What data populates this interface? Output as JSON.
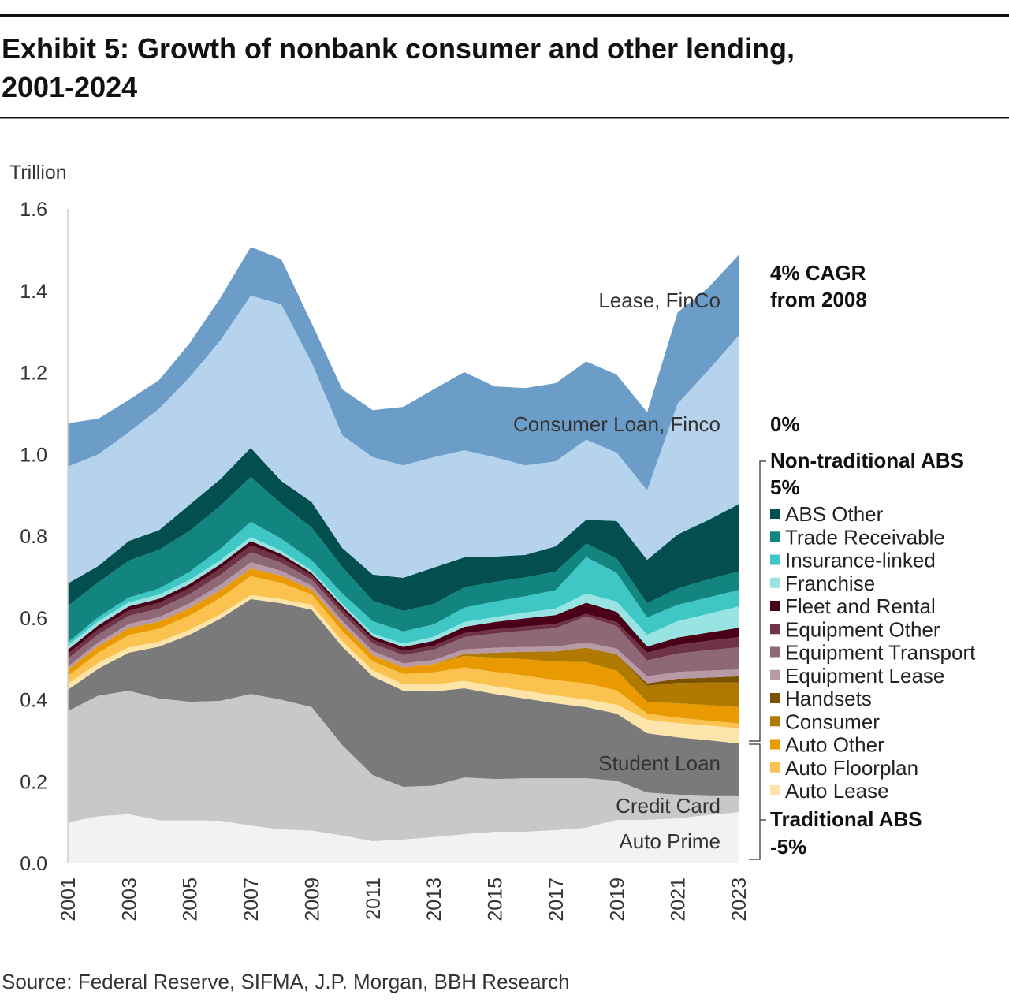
{
  "header": {
    "title_line1": "Exhibit 5: Growth of nonbank consumer and other lending,",
    "title_line2": "2001-2024"
  },
  "source": "Source: Federal Reserve, SIFMA, J.P. Morgan, BBH Research",
  "chart_data": {
    "type": "area",
    "stacked": true,
    "ylabel": "Trillion",
    "ylim": [
      0,
      1.6
    ],
    "yticks": [
      "0.0",
      "0.2",
      "0.4",
      "0.6",
      "0.8",
      "1.0",
      "1.2",
      "1.4",
      "1.6"
    ],
    "x": [
      2001,
      2002,
      2003,
      2004,
      2005,
      2006,
      2007,
      2008,
      2009,
      2010,
      2011,
      2012,
      2013,
      2014,
      2015,
      2016,
      2017,
      2018,
      2019,
      2020,
      2021,
      2022,
      2023
    ],
    "xtick_labels": [
      "2001",
      "2003",
      "2005",
      "2007",
      "2009",
      "2011",
      "2013",
      "2015",
      "2017",
      "2019",
      "2021",
      "2023"
    ],
    "grid": false,
    "legend_placement": "right",
    "series": [
      {
        "name": "Auto Prime",
        "color": "#f2f2f2",
        "inline_label": true,
        "values": [
          0.1,
          0.115,
          0.12,
          0.105,
          0.105,
          0.104,
          0.092,
          0.083,
          0.08,
          0.068,
          0.054,
          0.058,
          0.064,
          0.071,
          0.077,
          0.077,
          0.081,
          0.087,
          0.106,
          0.106,
          0.11,
          0.118,
          0.125
        ]
      },
      {
        "name": "Credit Card",
        "color": "#c8c8c8",
        "inline_label": true,
        "values": [
          0.272,
          0.295,
          0.302,
          0.298,
          0.29,
          0.293,
          0.322,
          0.317,
          0.302,
          0.221,
          0.162,
          0.129,
          0.126,
          0.139,
          0.129,
          0.131,
          0.127,
          0.121,
          0.096,
          0.067,
          0.058,
          0.046,
          0.039
        ]
      },
      {
        "name": "Student Loan",
        "color": "#7a7a7a",
        "inline_label": true,
        "values": [
          0.052,
          0.066,
          0.093,
          0.127,
          0.164,
          0.201,
          0.232,
          0.236,
          0.238,
          0.241,
          0.241,
          0.235,
          0.23,
          0.218,
          0.208,
          0.195,
          0.183,
          0.174,
          0.164,
          0.145,
          0.14,
          0.137,
          0.129
        ]
      },
      {
        "name": "Auto Lease",
        "color": "#fde4a8",
        "values": [
          0.015,
          0.014,
          0.013,
          0.012,
          0.012,
          0.011,
          0.01,
          0.01,
          0.012,
          0.013,
          0.015,
          0.016,
          0.017,
          0.018,
          0.019,
          0.019,
          0.019,
          0.019,
          0.022,
          0.033,
          0.035,
          0.036,
          0.037
        ]
      },
      {
        "name": "Auto Floorplan",
        "color": "#fbc24f",
        "values": [
          0.019,
          0.025,
          0.03,
          0.032,
          0.035,
          0.04,
          0.046,
          0.04,
          0.025,
          0.025,
          0.022,
          0.025,
          0.03,
          0.033,
          0.035,
          0.037,
          0.038,
          0.039,
          0.035,
          0.015,
          0.013,
          0.012,
          0.012
        ]
      },
      {
        "name": "Auto Other",
        "color": "#e89a00",
        "values": [
          0.015,
          0.016,
          0.017,
          0.017,
          0.018,
          0.018,
          0.019,
          0.017,
          0.012,
          0.015,
          0.015,
          0.016,
          0.02,
          0.028,
          0.035,
          0.04,
          0.045,
          0.052,
          0.048,
          0.029,
          0.035,
          0.038,
          0.04
        ]
      },
      {
        "name": "Consumer",
        "color": "#b07a00",
        "values": [
          0,
          0,
          0,
          0,
          0,
          0,
          0,
          0,
          0,
          0,
          0,
          0,
          0,
          0.005,
          0.012,
          0.018,
          0.025,
          0.035,
          0.04,
          0.039,
          0.05,
          0.055,
          0.06
        ]
      },
      {
        "name": "Handsets",
        "color": "#7a5200",
        "values": [
          0,
          0,
          0,
          0,
          0,
          0,
          0,
          0,
          0,
          0,
          0,
          0,
          0,
          0,
          0,
          0,
          0,
          0,
          0,
          0.006,
          0.01,
          0.012,
          0.015
        ]
      },
      {
        "name": "Equipment Lease",
        "color": "#b899a6",
        "values": [
          0.008,
          0.009,
          0.01,
          0.011,
          0.012,
          0.014,
          0.015,
          0.012,
          0.01,
          0.01,
          0.01,
          0.01,
          0.01,
          0.011,
          0.012,
          0.012,
          0.012,
          0.013,
          0.014,
          0.017,
          0.017,
          0.017,
          0.017
        ]
      },
      {
        "name": "Equipment Transport",
        "color": "#8f6878",
        "values": [
          0.019,
          0.02,
          0.02,
          0.021,
          0.022,
          0.024,
          0.025,
          0.02,
          0.015,
          0.018,
          0.018,
          0.02,
          0.025,
          0.03,
          0.035,
          0.04,
          0.045,
          0.064,
          0.055,
          0.039,
          0.045,
          0.05,
          0.054
        ]
      },
      {
        "name": "Equipment Other",
        "color": "#6e3344",
        "values": [
          0.012,
          0.012,
          0.013,
          0.014,
          0.015,
          0.016,
          0.017,
          0.013,
          0.01,
          0.01,
          0.01,
          0.01,
          0.01,
          0.01,
          0.01,
          0.01,
          0.01,
          0.006,
          0.01,
          0.019,
          0.021,
          0.023,
          0.025
        ]
      },
      {
        "name": "Fleet and Rental",
        "color": "#4a0018",
        "values": [
          0.01,
          0.01,
          0.01,
          0.01,
          0.01,
          0.01,
          0.01,
          0.008,
          0.006,
          0.008,
          0.008,
          0.01,
          0.012,
          0.015,
          0.018,
          0.02,
          0.022,
          0.027,
          0.025,
          0.015,
          0.018,
          0.02,
          0.023
        ]
      },
      {
        "name": "Franchise",
        "color": "#97e4e3",
        "values": [
          0.01,
          0.01,
          0.01,
          0.01,
          0.01,
          0.01,
          0.01,
          0.008,
          0.006,
          0.006,
          0.007,
          0.008,
          0.01,
          0.012,
          0.012,
          0.014,
          0.016,
          0.023,
          0.025,
          0.029,
          0.04,
          0.046,
          0.052
        ]
      },
      {
        "name": "Insurance-linked",
        "color": "#3fc7c5",
        "values": [
          0.008,
          0.01,
          0.012,
          0.015,
          0.02,
          0.028,
          0.037,
          0.03,
          0.025,
          0.025,
          0.03,
          0.03,
          0.03,
          0.035,
          0.038,
          0.04,
          0.045,
          0.089,
          0.07,
          0.042,
          0.04,
          0.04,
          0.04
        ]
      },
      {
        "name": "Trade Receivable",
        "color": "#138580",
        "values": [
          0.089,
          0.085,
          0.09,
          0.095,
          0.1,
          0.105,
          0.11,
          0.085,
          0.08,
          0.065,
          0.05,
          0.05,
          0.05,
          0.05,
          0.048,
          0.046,
          0.045,
          0.033,
          0.035,
          0.035,
          0.04,
          0.044,
          0.046
        ]
      },
      {
        "name": "ABS Other",
        "color": "#034f4f",
        "values": [
          0.055,
          0.04,
          0.048,
          0.048,
          0.064,
          0.065,
          0.071,
          0.056,
          0.062,
          0.046,
          0.064,
          0.081,
          0.089,
          0.073,
          0.062,
          0.055,
          0.062,
          0.058,
          0.092,
          0.106,
          0.132,
          0.145,
          0.164
        ]
      },
      {
        "name": "Consumer Loan, Finco",
        "color": "#b6d3ee",
        "inline_label": true,
        "values": [
          0.286,
          0.273,
          0.266,
          0.297,
          0.312,
          0.339,
          0.372,
          0.432,
          0.341,
          0.276,
          0.287,
          0.275,
          0.27,
          0.262,
          0.243,
          0.219,
          0.208,
          0.196,
          0.167,
          0.17,
          0.32,
          0.366,
          0.412
        ]
      },
      {
        "name": "Lease, FinCo",
        "color": "#6b9dc8",
        "inline_label": true,
        "values": [
          0.106,
          0.087,
          0.079,
          0.07,
          0.083,
          0.104,
          0.119,
          0.11,
          0.096,
          0.112,
          0.115,
          0.143,
          0.166,
          0.191,
          0.173,
          0.189,
          0.191,
          0.191,
          0.191,
          0.191,
          0.223,
          0.202,
          0.197
        ]
      }
    ],
    "legend": [
      "ABS Other",
      "Trade Receivable",
      "Insurance-linked",
      "Franchise",
      "Fleet and Rental",
      "Equipment Other",
      "Equipment Transport",
      "Equipment Lease",
      "Handsets",
      "Consumer",
      "Auto Other",
      "Auto Floorplan",
      "Auto Lease"
    ],
    "annotations": {
      "lease_cagr_line1": "4% CAGR",
      "lease_cagr_line2": "from 2008",
      "consumer_cagr": "0%",
      "nontraditional_label": "Non-traditional ABS",
      "nontraditional_cagr": "5%",
      "traditional_label": "Traditional ABS",
      "traditional_cagr": "-5%"
    }
  }
}
